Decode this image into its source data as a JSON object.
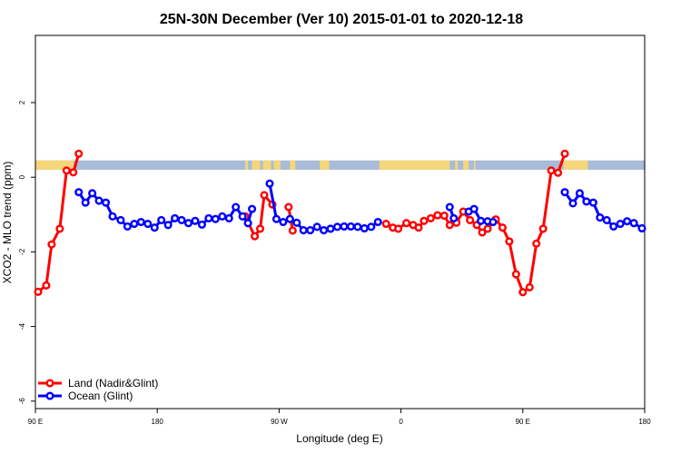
{
  "chart_data": {
    "type": "line",
    "title": "25N-30N December (Ver 10)   2015-01-01 to 2020-12-18",
    "xlabel": "Longitude (deg E)",
    "ylabel": "XCO2 - MLO trend (ppm)",
    "x_ticks": [
      {
        "value": 90,
        "label": "90 E"
      },
      {
        "value": 180,
        "label": "180"
      },
      {
        "value": 270,
        "label": "90 W"
      },
      {
        "value": 360,
        "label": "0"
      },
      {
        "value": 450,
        "label": "90 E"
      },
      {
        "value": 540,
        "label": "180"
      }
    ],
    "y_ticks": [
      -6,
      -4,
      -2,
      0,
      2
    ],
    "xlim": [
      90,
      540
    ],
    "ylim": [
      -6.2,
      3.8
    ],
    "grid": false,
    "legend_position": "bottom-left",
    "land_ocean_strip": {
      "y_range": [
        0.2,
        0.45
      ],
      "land_color": "#F5D77A",
      "ocean_color": "#A8BCD8",
      "land_spans": [
        [
          90,
          118
        ],
        [
          245,
          247
        ],
        [
          250,
          256
        ],
        [
          258,
          264
        ],
        [
          266,
          271
        ],
        [
          278,
          282
        ],
        [
          300,
          307
        ],
        [
          344,
          396
        ],
        [
          400,
          402
        ],
        [
          406,
          410
        ],
        [
          414,
          415
        ],
        [
          480,
          498
        ]
      ]
    },
    "series": [
      {
        "name": "Land (Nadir&Glint)",
        "color": "#FF0000",
        "segments": [
          [
            [
              92,
              -3.07
            ],
            [
              98,
              -2.9
            ],
            [
              102,
              -1.8
            ],
            [
              108,
              -1.38
            ],
            [
              113,
              0.18
            ],
            [
              118,
              0.13
            ],
            [
              122,
              0.63
            ]
          ],
          [
            [
              245,
              -1.05
            ],
            [
              252,
              -1.58
            ],
            [
              256,
              -1.38
            ],
            [
              259,
              -0.48
            ],
            [
              265,
              -0.73
            ]
          ],
          [
            [
              277,
              -0.8
            ],
            [
              280,
              -1.43
            ]
          ],
          [
            [
              349,
              -1.25
            ],
            [
              354,
              -1.35
            ],
            [
              358,
              -1.38
            ],
            [
              364,
              -1.23
            ],
            [
              369,
              -1.28
            ],
            [
              373,
              -1.35
            ],
            [
              377,
              -1.17
            ],
            [
              382,
              -1.1
            ],
            [
              387,
              -1.02
            ],
            [
              392,
              -1.03
            ],
            [
              396,
              -1.28
            ],
            [
              401,
              -1.22
            ],
            [
              406,
              -0.92
            ],
            [
              411,
              -1.15
            ],
            [
              416,
              -1.28
            ],
            [
              420,
              -1.48
            ],
            [
              424,
              -1.38
            ],
            [
              430,
              -1.13
            ],
            [
              435,
              -1.35
            ],
            [
              440,
              -1.72
            ],
            [
              445,
              -2.6
            ],
            [
              450,
              -3.08
            ],
            [
              455,
              -2.95
            ],
            [
              460,
              -1.78
            ],
            [
              465,
              -1.38
            ],
            [
              471,
              0.18
            ],
            [
              476,
              0.12
            ],
            [
              481,
              0.63
            ]
          ]
        ]
      },
      {
        "name": "Ocean (Glint)",
        "color": "#0000FF",
        "segments": [
          [
            [
              122,
              -0.4
            ],
            [
              127,
              -0.68
            ],
            [
              132,
              -0.43
            ],
            [
              137,
              -0.63
            ],
            [
              142,
              -0.68
            ],
            [
              147,
              -1.05
            ],
            [
              153,
              -1.15
            ],
            [
              158,
              -1.32
            ],
            [
              163,
              -1.25
            ],
            [
              168,
              -1.2
            ],
            [
              173,
              -1.25
            ],
            [
              178,
              -1.35
            ],
            [
              183,
              -1.15
            ],
            [
              188,
              -1.28
            ],
            [
              193,
              -1.1
            ],
            [
              198,
              -1.15
            ],
            [
              203,
              -1.23
            ],
            [
              208,
              -1.17
            ],
            [
              213,
              -1.27
            ],
            [
              218,
              -1.1
            ],
            [
              223,
              -1.12
            ],
            [
              228,
              -1.05
            ],
            [
              233,
              -1.1
            ],
            [
              238,
              -0.8
            ],
            [
              243,
              -1.05
            ],
            [
              247,
              -1.23
            ],
            [
              250,
              -0.85
            ]
          ],
          [
            [
              263,
              -0.17
            ],
            [
              268,
              -1.12
            ],
            [
              273,
              -1.2
            ],
            [
              278,
              -1.12
            ],
            [
              283,
              -1.22
            ],
            [
              288,
              -1.42
            ],
            [
              293,
              -1.42
            ],
            [
              298,
              -1.33
            ],
            [
              303,
              -1.42
            ],
            [
              308,
              -1.38
            ],
            [
              313,
              -1.33
            ],
            [
              318,
              -1.32
            ],
            [
              323,
              -1.32
            ],
            [
              328,
              -1.33
            ],
            [
              333,
              -1.37
            ],
            [
              338,
              -1.33
            ],
            [
              343,
              -1.2
            ]
          ],
          [
            [
              396,
              -0.8
            ],
            [
              399,
              -1.1
            ]
          ],
          [
            [
              410,
              -0.92
            ],
            [
              414,
              -0.85
            ],
            [
              419,
              -1.17
            ],
            [
              424,
              -1.18
            ],
            [
              428,
              -1.2
            ]
          ],
          [
            [
              481,
              -0.4
            ],
            [
              487,
              -0.7
            ],
            [
              492,
              -0.43
            ],
            [
              497,
              -0.65
            ],
            [
              502,
              -0.68
            ],
            [
              507,
              -1.08
            ],
            [
              512,
              -1.15
            ],
            [
              517,
              -1.32
            ],
            [
              522,
              -1.25
            ],
            [
              527,
              -1.18
            ],
            [
              532,
              -1.23
            ],
            [
              538,
              -1.37
            ]
          ]
        ]
      }
    ]
  }
}
